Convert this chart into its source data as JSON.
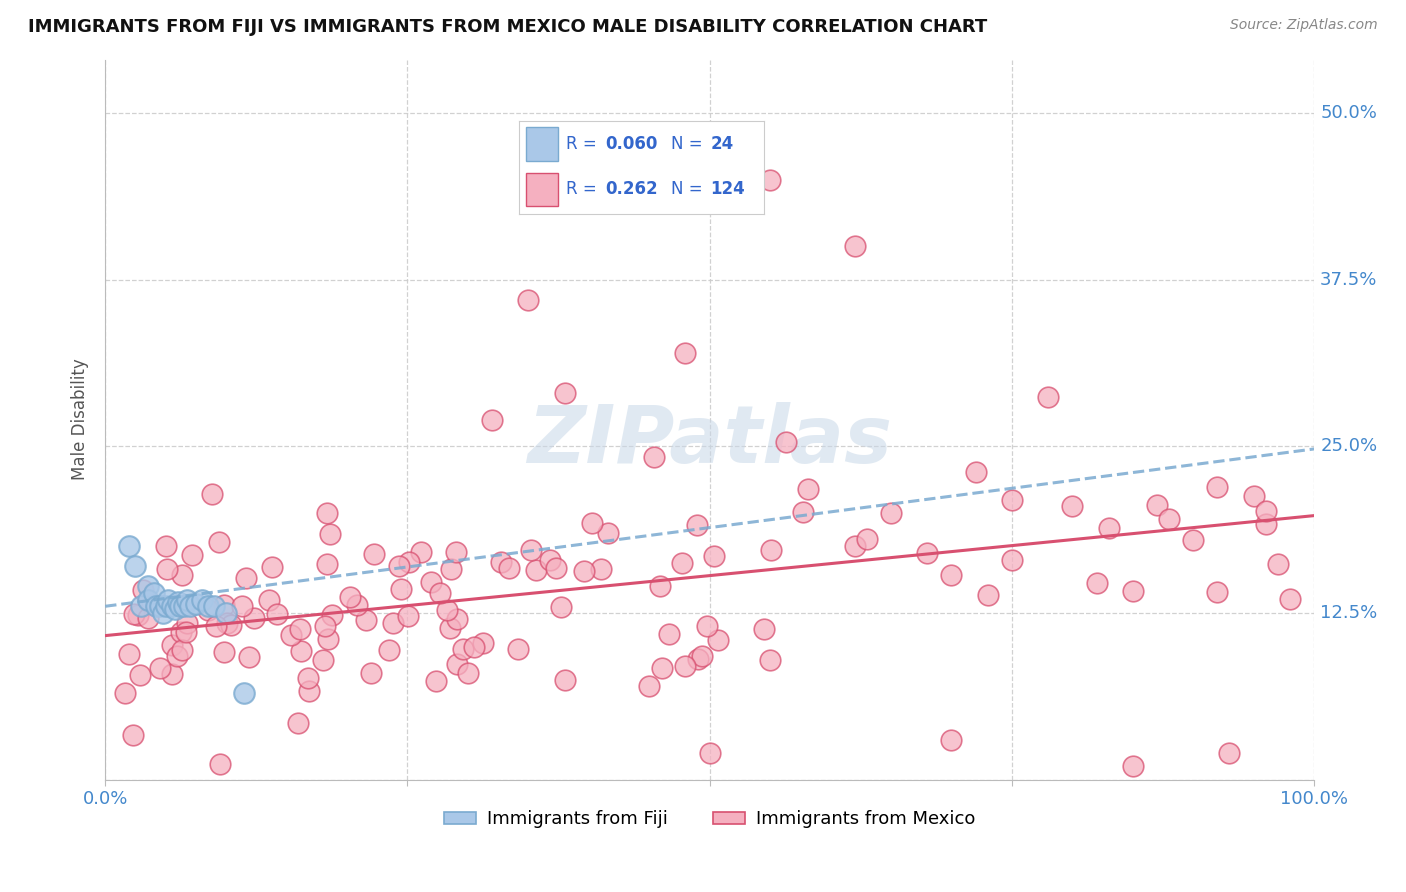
{
  "title": "IMMIGRANTS FROM FIJI VS IMMIGRANTS FROM MEXICO MALE DISABILITY CORRELATION CHART",
  "source": "Source: ZipAtlas.com",
  "ylabel": "Male Disability",
  "fiji_R": 0.06,
  "fiji_N": 24,
  "mexico_R": 0.262,
  "mexico_N": 124,
  "fiji_color": "#aac8e8",
  "mexico_color": "#f5b0c0",
  "fiji_line_color": "#7aaad0",
  "mexico_line_color": "#d85070",
  "background_color": "#ffffff",
  "grid_color": "#cccccc",
  "title_color": "#111111",
  "axis_label_color": "#555555",
  "tick_color": "#4488cc",
  "legend_r_color": "#3366cc",
  "fiji_trend_start_y": 0.13,
  "fiji_trend_end_y": 0.248,
  "mexico_trend_start_y": 0.108,
  "mexico_trend_end_y": 0.198,
  "xlim": [
    0.0,
    1.0
  ],
  "ylim": [
    0.0,
    0.54
  ],
  "ytick_vals": [
    0.0,
    0.125,
    0.25,
    0.375,
    0.5
  ],
  "ytick_labels_right": [
    "",
    "12.5%",
    "25.0%",
    "37.5%",
    "50.0%"
  ]
}
